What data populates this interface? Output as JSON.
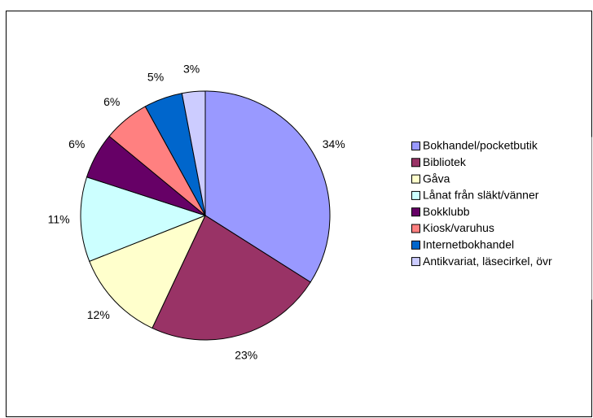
{
  "chart_data": {
    "type": "pie",
    "categories": [
      "Bokhandel/pocketbutik",
      "Bibliotek",
      "Gåva",
      "Lånat från släkt/vänner",
      "Bokklubb",
      "Kiosk/varuhus",
      "Internetbokhandel",
      "Antikvariat, läsecirkel, övr"
    ],
    "values": [
      34,
      23,
      12,
      11,
      6,
      6,
      5,
      3
    ],
    "value_labels": [
      "34%",
      "23%",
      "12%",
      "11%",
      "6%",
      "6%",
      "5%",
      "3%"
    ],
    "colors": [
      "#9999ff",
      "#993366",
      "#ffffcc",
      "#ccffff",
      "#660066",
      "#ff8080",
      "#0066cc",
      "#ccccff"
    ],
    "legend": "right"
  }
}
